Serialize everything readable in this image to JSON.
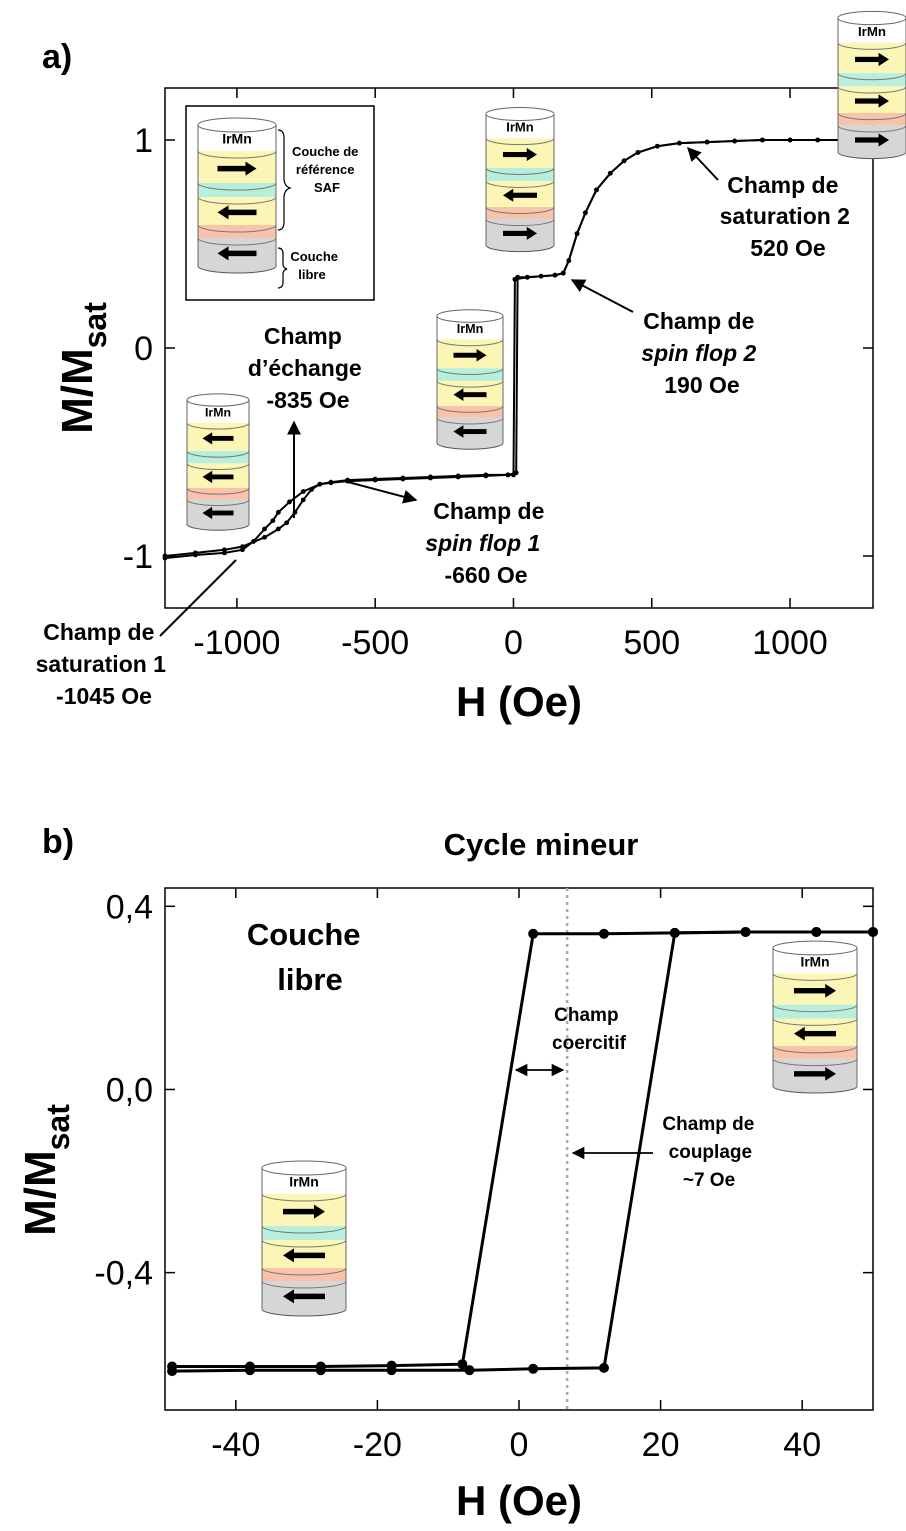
{
  "chart_data": [
    {
      "panel_label": "a)",
      "type": "line",
      "xlabel": "H (Oe)",
      "ylabel": "M/M",
      "ylabel_sub": "sat",
      "xlim": [
        -1260,
        1300
      ],
      "ylim": [
        -1.25,
        1.25
      ],
      "xticks": [
        -1000,
        -500,
        0,
        500,
        1000
      ],
      "xtick_labels": [
        "-1000",
        "-500",
        "0",
        "500",
        "1000"
      ],
      "yticks": [
        -1,
        0,
        1
      ],
      "ytick_labels": [
        "-1",
        "0",
        "1"
      ],
      "series": [
        {
          "values": [
            [
              -1260,
              -1.0
            ],
            [
              -1150,
              -0.985
            ],
            [
              -1045,
              -0.97
            ],
            [
              -980,
              -0.955
            ],
            [
              -900,
              -0.91
            ],
            [
              -850,
              -0.87
            ],
            [
              -820,
              -0.84
            ],
            [
              -790,
              -0.79
            ],
            [
              -760,
              -0.73
            ],
            [
              -730,
              -0.68
            ],
            [
              -700,
              -0.655
            ],
            [
              -660,
              -0.648
            ],
            [
              -600,
              -0.64
            ],
            [
              -500,
              -0.635
            ],
            [
              -400,
              -0.63
            ],
            [
              -300,
              -0.625
            ],
            [
              -200,
              -0.62
            ],
            [
              -100,
              -0.615
            ],
            [
              -20,
              -0.61
            ],
            [
              0,
              -0.61
            ],
            [
              5,
              0.33
            ],
            [
              50,
              0.34
            ],
            [
              100,
              0.345
            ],
            [
              150,
              0.35
            ],
            [
              180,
              0.36
            ],
            [
              200,
              0.42
            ],
            [
              230,
              0.55
            ],
            [
              260,
              0.65
            ],
            [
              300,
              0.76
            ],
            [
              350,
              0.84
            ],
            [
              400,
              0.9
            ],
            [
              450,
              0.94
            ],
            [
              520,
              0.97
            ],
            [
              600,
              0.985
            ],
            [
              700,
              0.99
            ],
            [
              800,
              0.995
            ],
            [
              900,
              1.0
            ],
            [
              1000,
              1.0
            ],
            [
              1100,
              1.0
            ],
            [
              1200,
              1.0
            ]
          ]
        },
        {
          "values": [
            [
              -1260,
              -1.01
            ],
            [
              -1150,
              -0.995
            ],
            [
              -1045,
              -0.985
            ],
            [
              -980,
              -0.97
            ],
            [
              -940,
              -0.93
            ],
            [
              -900,
              -0.87
            ],
            [
              -870,
              -0.83
            ],
            [
              -850,
              -0.79
            ],
            [
              -810,
              -0.74
            ],
            [
              -760,
              -0.69
            ],
            [
              -700,
              -0.655
            ],
            [
              -660,
              -0.645
            ],
            [
              -600,
              -0.635
            ],
            [
              -500,
              -0.63
            ],
            [
              -400,
              -0.625
            ],
            [
              -300,
              -0.62
            ],
            [
              -200,
              -0.615
            ],
            [
              -100,
              -0.61
            ],
            [
              -20,
              -0.61
            ],
            [
              10,
              -0.6
            ],
            [
              15,
              0.34
            ],
            [
              50,
              0.34
            ],
            [
              100,
              0.345
            ],
            [
              150,
              0.35
            ],
            [
              180,
              0.36
            ],
            [
              200,
              0.42
            ],
            [
              230,
              0.55
            ],
            [
              260,
              0.65
            ],
            [
              300,
              0.76
            ],
            [
              350,
              0.84
            ],
            [
              400,
              0.9
            ],
            [
              450,
              0.94
            ],
            [
              520,
              0.97
            ],
            [
              600,
              0.985
            ],
            [
              700,
              0.99
            ],
            [
              800,
              0.995
            ],
            [
              900,
              1.0
            ],
            [
              1000,
              1.0
            ],
            [
              1100,
              1.0
            ],
            [
              1200,
              1.0
            ]
          ]
        }
      ],
      "annotations": [
        {
          "lines": [
            "Champ de",
            "saturation 2",
            "520 Oe"
          ]
        },
        {
          "lines": [
            "Champ de",
            "spin flop 2",
            "190 Oe"
          ]
        },
        {
          "lines": [
            "Champ",
            "d’échange",
            "-835 Oe"
          ]
        },
        {
          "lines": [
            "Champ de",
            "spin flop 1",
            "-660 Oe"
          ]
        },
        {
          "lines": [
            "Champ de",
            "saturation 1",
            "-1045 Oe"
          ]
        }
      ],
      "inset": {
        "stack_label": "IrMn",
        "reference_label": [
          "Couche de",
          "référence",
          "SAF"
        ],
        "free_label": [
          "Couche",
          "libre"
        ]
      },
      "stack_label": "IrMn"
    },
    {
      "panel_label": "b)",
      "type": "line",
      "title": "Cycle mineur",
      "xlabel": "H (Oe)",
      "ylabel": "M/M",
      "ylabel_sub": "sat",
      "xlim": [
        -50,
        50
      ],
      "ylim": [
        -0.7,
        0.44
      ],
      "xticks": [
        -40,
        -20,
        0,
        20,
        40
      ],
      "xtick_labels": [
        "-40",
        "-20",
        "0",
        "20",
        "40"
      ],
      "yticks": [
        -0.4,
        0.0,
        0.4
      ],
      "ytick_labels": [
        "-0,4",
        "0,0",
        "0,4"
      ],
      "coercive_line_x": 6.8,
      "series": [
        {
          "values": [
            [
              -49,
              -0.605
            ],
            [
              -38,
              -0.605
            ],
            [
              -28,
              -0.605
            ],
            [
              -18,
              -0.603
            ],
            [
              -8,
              -0.6
            ],
            [
              2,
              0.34
            ],
            [
              12,
              0.34
            ],
            [
              22,
              0.342
            ],
            [
              32,
              0.344
            ],
            [
              42,
              0.344
            ],
            [
              50,
              0.344
            ]
          ]
        },
        {
          "values": [
            [
              -49,
              -0.615
            ],
            [
              -38,
              -0.613
            ],
            [
              -28,
              -0.613
            ],
            [
              -18,
              -0.613
            ],
            [
              -7,
              -0.613
            ],
            [
              2,
              -0.61
            ],
            [
              12,
              -0.608
            ],
            [
              22,
              0.342
            ],
            [
              32,
              0.344
            ],
            [
              42,
              0.344
            ],
            [
              50,
              0.344
            ]
          ]
        }
      ],
      "annotations": [
        {
          "lines": [
            "Couche",
            "libre"
          ]
        },
        {
          "lines": [
            "Champ",
            "coercitif"
          ]
        },
        {
          "lines": [
            "Champ de",
            "couplage",
            "~7 Oe"
          ]
        }
      ],
      "stack_label": "IrMn"
    }
  ]
}
